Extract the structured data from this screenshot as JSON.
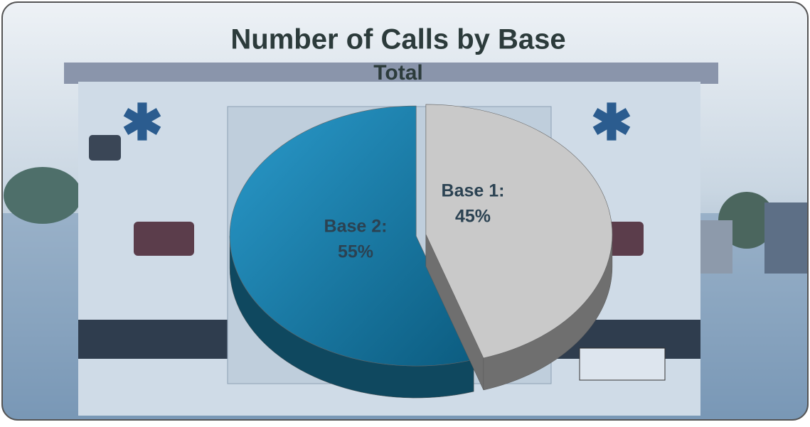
{
  "chart_data": {
    "type": "pie",
    "title": "Number of Calls by Base",
    "subtitle": "Total",
    "categories": [
      "Base 1:",
      "Base 2:"
    ],
    "values": [
      45,
      55
    ],
    "value_labels": [
      "45%",
      "55%"
    ],
    "colors": [
      "#c9c9c9",
      "#1b82ad"
    ],
    "three_d": true
  }
}
